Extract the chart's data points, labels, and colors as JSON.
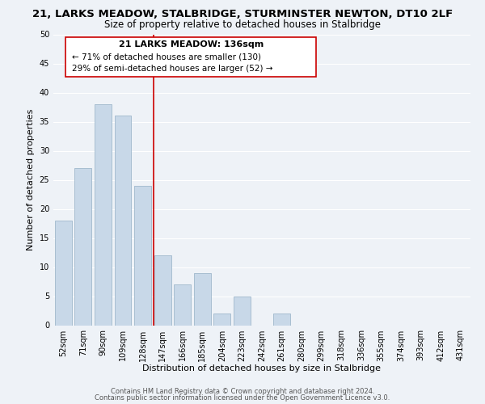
{
  "title": "21, LARKS MEADOW, STALBRIDGE, STURMINSTER NEWTON, DT10 2LF",
  "subtitle": "Size of property relative to detached houses in Stalbridge",
  "xlabel": "Distribution of detached houses by size in Stalbridge",
  "ylabel": "Number of detached properties",
  "bar_labels": [
    "52sqm",
    "71sqm",
    "90sqm",
    "109sqm",
    "128sqm",
    "147sqm",
    "166sqm",
    "185sqm",
    "204sqm",
    "223sqm",
    "242sqm",
    "261sqm",
    "280sqm",
    "299sqm",
    "318sqm",
    "336sqm",
    "355sqm",
    "374sqm",
    "393sqm",
    "412sqm",
    "431sqm"
  ],
  "bar_values": [
    18,
    27,
    38,
    36,
    24,
    12,
    7,
    9,
    2,
    5,
    0,
    2,
    0,
    0,
    0,
    0,
    0,
    0,
    0,
    0,
    0
  ],
  "bar_color": "#c8d8e8",
  "bar_edgecolor": "#a0b8cc",
  "annotation_title": "21 LARKS MEADOW: 136sqm",
  "annotation_line1": "← 71% of detached houses are smaller (130)",
  "annotation_line2": "29% of semi-detached houses are larger (52) →",
  "vline_x": 4.55,
  "vline_color": "#cc0000",
  "annotation_box_edgecolor": "#cc0000",
  "ylim": [
    0,
    50
  ],
  "yticks": [
    0,
    5,
    10,
    15,
    20,
    25,
    30,
    35,
    40,
    45,
    50
  ],
  "footer_line1": "Contains HM Land Registry data © Crown copyright and database right 2024.",
  "footer_line2": "Contains public sector information licensed under the Open Government Licence v3.0.",
  "bg_color": "#eef2f7",
  "grid_color": "#ffffff",
  "title_fontsize": 9.5,
  "subtitle_fontsize": 8.5,
  "axis_label_fontsize": 8,
  "tick_fontsize": 7,
  "annotation_title_fontsize": 8,
  "annotation_body_fontsize": 7.5,
  "footer_fontsize": 6
}
